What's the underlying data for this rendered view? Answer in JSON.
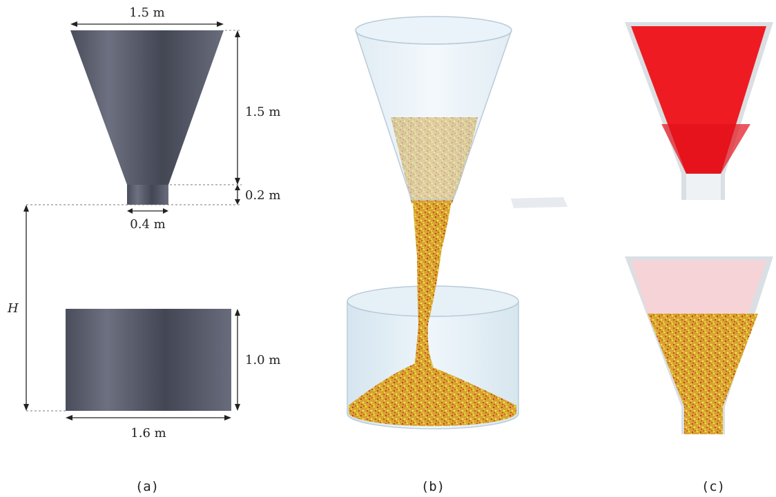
{
  "panel_a": {
    "caption": "(a)",
    "labels": {
      "hopper_top_width": "1.5 m",
      "hopper_height": "1.5 m",
      "outlet_height": "0.2 m",
      "outlet_width": "0.4 m",
      "drop_height": "H",
      "container_height": "1.0 m",
      "container_width": "1.6 m"
    },
    "colors": {
      "solid": "#5b5f6e",
      "solid_light": "#6e7282",
      "solid_dark": "#464a57"
    }
  },
  "panel_b": {
    "caption": "(b)",
    "colors": {
      "glass": "#d6e8f3",
      "particle_yellow": "#e8e23a",
      "particle_red": "#d2321e"
    }
  },
  "panel_c": {
    "caption": "(c)",
    "colors": {
      "fill_red": "#ee1c22",
      "fill_pink": "#f6d3d6",
      "glass_border": "#d9dde2"
    }
  }
}
